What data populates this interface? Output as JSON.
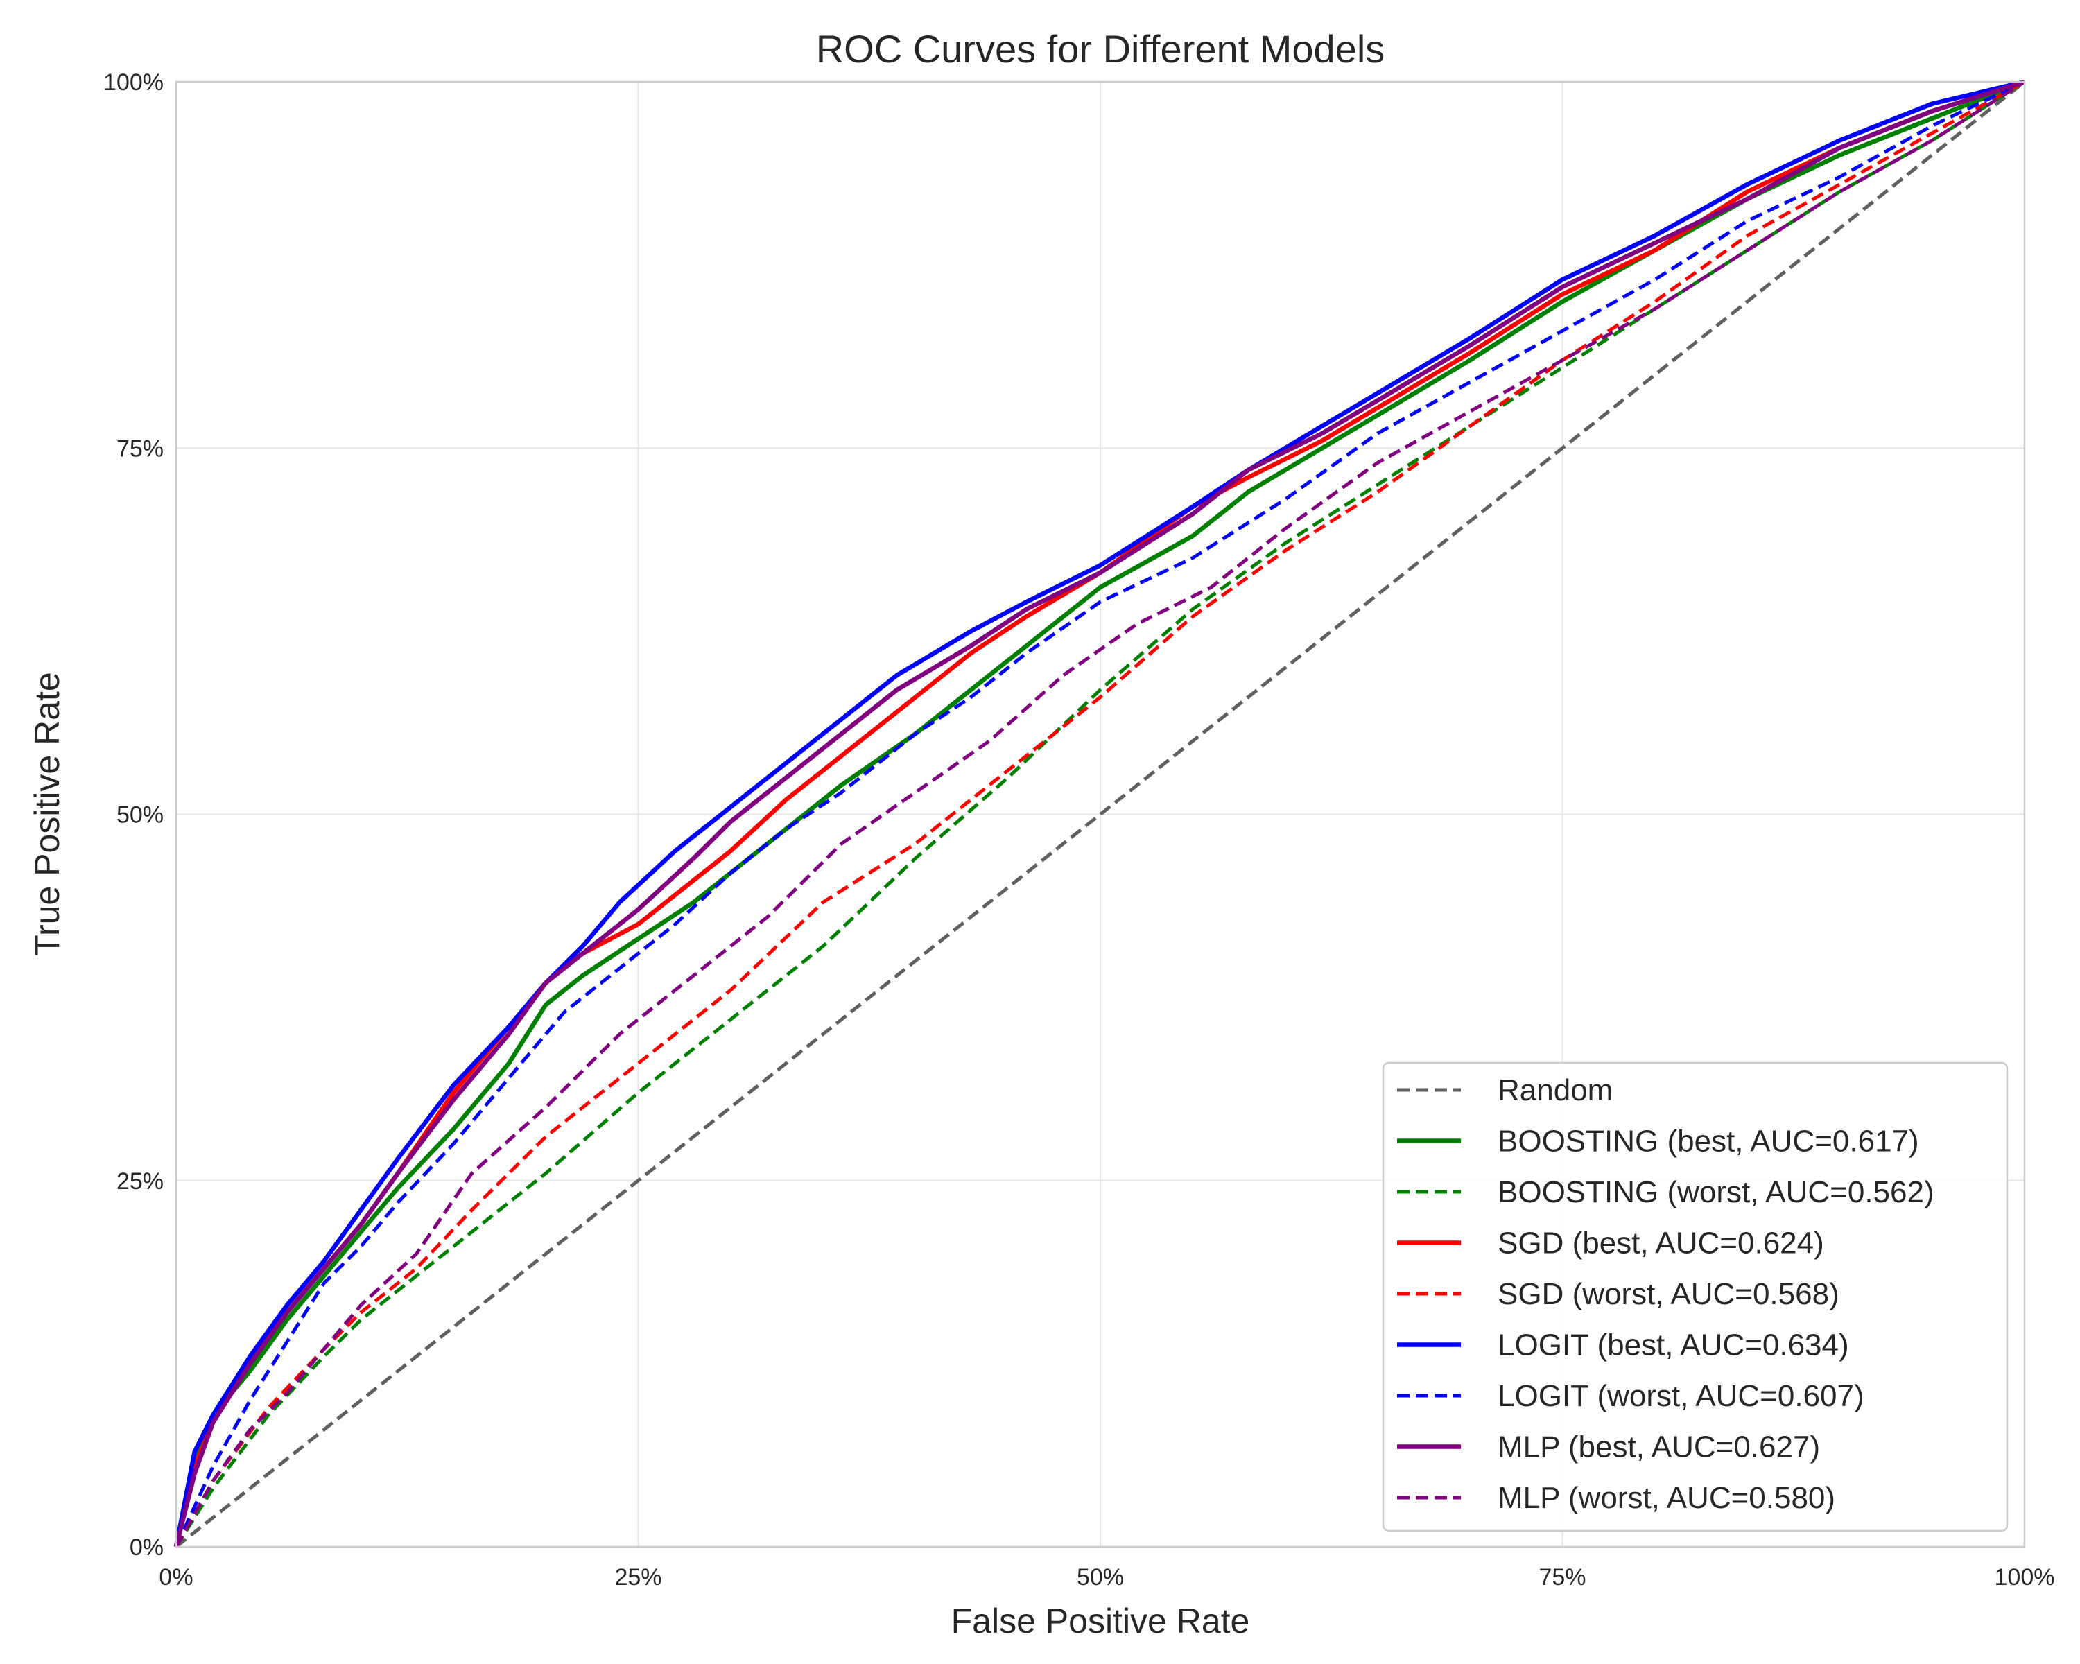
{
  "chart_data": {
    "type": "line",
    "title": "ROC Curves for Different Models",
    "xlabel": "False Positive Rate",
    "ylabel": "True Positive Rate",
    "xlim": [
      0,
      1
    ],
    "ylim": [
      0,
      1
    ],
    "grid": true,
    "legend_position": "lower-right",
    "x_ticks": [
      0,
      0.25,
      0.5,
      0.75,
      1.0
    ],
    "x_tick_labels": [
      "0%",
      "25%",
      "50%",
      "75%",
      "100%"
    ],
    "y_ticks": [
      0,
      0.25,
      0.5,
      0.75,
      1.0
    ],
    "y_tick_labels": [
      "0%",
      "25%",
      "50%",
      "75%",
      "100%"
    ],
    "series": [
      {
        "name": "Random",
        "color": "#606060",
        "style": "dashed",
        "x": [
          0,
          1
        ],
        "y": [
          0,
          1
        ]
      },
      {
        "name": "BOOSTING (best, AUC=0.617)",
        "color": "#008000",
        "style": "solid",
        "x": [
          0,
          0.01,
          0.02,
          0.04,
          0.06,
          0.08,
          0.1,
          0.12,
          0.15,
          0.18,
          0.2,
          0.22,
          0.25,
          0.28,
          0.3,
          0.33,
          0.36,
          0.4,
          0.43,
          0.46,
          0.5,
          0.55,
          0.58,
          0.62,
          0.66,
          0.7,
          0.75,
          0.8,
          0.85,
          0.9,
          0.95,
          1.0
        ],
        "y": [
          0,
          0.06,
          0.09,
          0.12,
          0.155,
          0.185,
          0.215,
          0.245,
          0.285,
          0.33,
          0.37,
          0.39,
          0.415,
          0.44,
          0.46,
          0.49,
          0.52,
          0.555,
          0.585,
          0.615,
          0.655,
          0.69,
          0.72,
          0.75,
          0.78,
          0.81,
          0.85,
          0.885,
          0.92,
          0.95,
          0.975,
          1.0
        ]
      },
      {
        "name": "BOOSTING (worst, AUC=0.562)",
        "color": "#008000",
        "style": "dashed",
        "x": [
          0,
          0.02,
          0.05,
          0.08,
          0.1,
          0.13,
          0.16,
          0.2,
          0.25,
          0.3,
          0.35,
          0.4,
          0.45,
          0.5,
          0.55,
          0.6,
          0.65,
          0.7,
          0.75,
          0.8,
          0.85,
          0.9,
          0.95,
          1.0
        ],
        "y": [
          0,
          0.04,
          0.09,
          0.13,
          0.155,
          0.185,
          0.215,
          0.255,
          0.31,
          0.36,
          0.41,
          0.47,
          0.525,
          0.585,
          0.64,
          0.685,
          0.725,
          0.765,
          0.805,
          0.845,
          0.885,
          0.925,
          0.96,
          1.0
        ]
      },
      {
        "name": "SGD (best, AUC=0.624)",
        "color": "#ff0000",
        "style": "solid",
        "x": [
          0,
          0.01,
          0.02,
          0.04,
          0.06,
          0.08,
          0.1,
          0.12,
          0.15,
          0.18,
          0.2,
          0.22,
          0.25,
          0.28,
          0.3,
          0.33,
          0.36,
          0.4,
          0.43,
          0.46,
          0.5,
          0.55,
          0.58,
          0.62,
          0.66,
          0.7,
          0.75,
          0.8,
          0.85,
          0.9,
          0.95,
          1.0
        ],
        "y": [
          0,
          0.055,
          0.085,
          0.125,
          0.16,
          0.19,
          0.22,
          0.255,
          0.31,
          0.355,
          0.385,
          0.405,
          0.425,
          0.455,
          0.475,
          0.51,
          0.54,
          0.58,
          0.61,
          0.635,
          0.665,
          0.71,
          0.73,
          0.755,
          0.785,
          0.815,
          0.855,
          0.885,
          0.925,
          0.955,
          0.98,
          1.0
        ]
      },
      {
        "name": "SGD (worst, AUC=0.568)",
        "color": "#ff0000",
        "style": "dashed",
        "x": [
          0,
          0.02,
          0.05,
          0.08,
          0.1,
          0.13,
          0.16,
          0.2,
          0.25,
          0.3,
          0.35,
          0.4,
          0.45,
          0.5,
          0.55,
          0.6,
          0.65,
          0.7,
          0.75,
          0.8,
          0.85,
          0.9,
          0.95,
          1.0
        ],
        "y": [
          0,
          0.045,
          0.095,
          0.135,
          0.16,
          0.19,
          0.23,
          0.28,
          0.33,
          0.38,
          0.44,
          0.48,
          0.53,
          0.58,
          0.635,
          0.68,
          0.72,
          0.765,
          0.81,
          0.85,
          0.895,
          0.93,
          0.965,
          1.0
        ]
      },
      {
        "name": "LOGIT (best, AUC=0.634)",
        "color": "#0000ff",
        "style": "solid",
        "x": [
          0,
          0.01,
          0.02,
          0.04,
          0.06,
          0.08,
          0.1,
          0.12,
          0.15,
          0.18,
          0.2,
          0.22,
          0.24,
          0.27,
          0.3,
          0.33,
          0.36,
          0.39,
          0.43,
          0.46,
          0.5,
          0.55,
          0.58,
          0.62,
          0.66,
          0.7,
          0.75,
          0.8,
          0.85,
          0.9,
          0.95,
          1.0
        ],
        "y": [
          0,
          0.065,
          0.09,
          0.13,
          0.165,
          0.195,
          0.23,
          0.265,
          0.315,
          0.355,
          0.385,
          0.41,
          0.44,
          0.475,
          0.505,
          0.535,
          0.565,
          0.595,
          0.625,
          0.645,
          0.67,
          0.71,
          0.735,
          0.765,
          0.795,
          0.825,
          0.865,
          0.895,
          0.93,
          0.96,
          0.985,
          1.0
        ]
      },
      {
        "name": "LOGIT (worst, AUC=0.607)",
        "color": "#0000ff",
        "style": "dashed",
        "x": [
          0,
          0.02,
          0.04,
          0.06,
          0.08,
          0.1,
          0.12,
          0.15,
          0.18,
          0.21,
          0.24,
          0.27,
          0.3,
          0.33,
          0.36,
          0.4,
          0.43,
          0.46,
          0.5,
          0.55,
          0.6,
          0.65,
          0.7,
          0.75,
          0.8,
          0.85,
          0.9,
          0.95,
          1.0
        ],
        "y": [
          0,
          0.055,
          0.1,
          0.14,
          0.18,
          0.205,
          0.235,
          0.275,
          0.32,
          0.365,
          0.395,
          0.425,
          0.46,
          0.49,
          0.515,
          0.555,
          0.58,
          0.61,
          0.645,
          0.675,
          0.715,
          0.76,
          0.795,
          0.83,
          0.865,
          0.905,
          0.935,
          0.97,
          1.0
        ]
      },
      {
        "name": "MLP (best, AUC=0.627)",
        "color": "#800080",
        "style": "solid",
        "x": [
          0,
          0.01,
          0.02,
          0.04,
          0.06,
          0.08,
          0.1,
          0.12,
          0.15,
          0.18,
          0.2,
          0.22,
          0.25,
          0.28,
          0.3,
          0.33,
          0.36,
          0.39,
          0.43,
          0.46,
          0.5,
          0.55,
          0.58,
          0.62,
          0.66,
          0.7,
          0.75,
          0.8,
          0.85,
          0.9,
          0.95,
          1.0
        ],
        "y": [
          0,
          0.05,
          0.085,
          0.125,
          0.16,
          0.19,
          0.22,
          0.255,
          0.305,
          0.35,
          0.385,
          0.405,
          0.435,
          0.47,
          0.495,
          0.525,
          0.555,
          0.585,
          0.615,
          0.64,
          0.665,
          0.705,
          0.735,
          0.76,
          0.79,
          0.82,
          0.86,
          0.89,
          0.92,
          0.955,
          0.98,
          1.0
        ]
      },
      {
        "name": "MLP (worst, AUC=0.580)",
        "color": "#800080",
        "style": "dashed",
        "x": [
          0,
          0.02,
          0.04,
          0.06,
          0.08,
          0.1,
          0.13,
          0.16,
          0.2,
          0.24,
          0.28,
          0.32,
          0.36,
          0.4,
          0.44,
          0.48,
          0.52,
          0.56,
          0.6,
          0.65,
          0.7,
          0.75,
          0.8,
          0.85,
          0.9,
          0.95,
          1.0
        ],
        "y": [
          0,
          0.045,
          0.08,
          0.105,
          0.135,
          0.165,
          0.2,
          0.255,
          0.3,
          0.35,
          0.39,
          0.43,
          0.48,
          0.515,
          0.55,
          0.595,
          0.63,
          0.655,
          0.695,
          0.74,
          0.775,
          0.81,
          0.845,
          0.885,
          0.925,
          0.96,
          1.0
        ]
      }
    ]
  }
}
